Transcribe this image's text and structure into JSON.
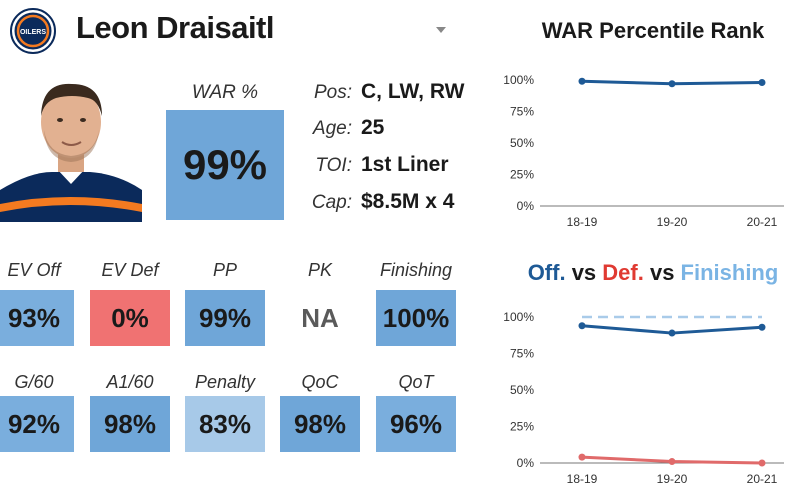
{
  "header": {
    "player_name": "Leon Draisaitl",
    "logo_text": "OILERS"
  },
  "war": {
    "label": "WAR %",
    "value": "99%"
  },
  "info": [
    {
      "key": "Pos:",
      "value": "C, LW, RW"
    },
    {
      "key": "Age:",
      "value": "25"
    },
    {
      "key": "TOI:",
      "value": "1st Liner"
    },
    {
      "key": "Cap:",
      "value": "$8.5M x 4"
    }
  ],
  "stats": [
    {
      "label": "EV Off",
      "value": "93%",
      "color": "#7aaedd"
    },
    {
      "label": "EV Def",
      "value": "0%",
      "color": "#f07272"
    },
    {
      "label": "PP",
      "value": "99%",
      "color": "#6fa6d8"
    },
    {
      "label": "PK",
      "value": "NA",
      "color": "#ffffff"
    },
    {
      "label": "Finishing",
      "value": "100%",
      "color": "#6fa6d8"
    },
    {
      "label": "G/60",
      "value": "92%",
      "color": "#7aaedd"
    },
    {
      "label": "A1/60",
      "value": "98%",
      "color": "#6fa6d8"
    },
    {
      "label": "Penalty",
      "value": "83%",
      "color": "#a7c9e8"
    },
    {
      "label": "QoC",
      "value": "98%",
      "color": "#6fa6d8"
    },
    {
      "label": "QoT",
      "value": "96%",
      "color": "#7aaedd"
    }
  ],
  "chart_titles": {
    "war": "WAR Percentile Rank",
    "off": "Off.",
    "def": "Def.",
    "fin": "Finishing",
    "vs1": " vs ",
    "vs2": " vs "
  },
  "chart_data": [
    {
      "type": "line",
      "title": "WAR Percentile Rank",
      "categories": [
        "18-19",
        "19-20",
        "20-21"
      ],
      "yticks": [
        "0%",
        "25%",
        "50%",
        "75%",
        "100%"
      ],
      "ylim": [
        0,
        100
      ],
      "series": [
        {
          "values": [
            99,
            97,
            98
          ],
          "color": "#1e5a96",
          "dashed": false
        }
      ]
    },
    {
      "type": "line",
      "title": "Off. vs Def. vs Finishing",
      "categories": [
        "18-19",
        "19-20",
        "20-21"
      ],
      "yticks": [
        "0%",
        "25%",
        "50%",
        "75%",
        "100%"
      ],
      "ylim": [
        0,
        100
      ],
      "series": [
        {
          "values": [
            100,
            100,
            100
          ],
          "color": "#a9cbe9",
          "dashed": true,
          "markers": false
        },
        {
          "values": [
            94,
            89,
            93
          ],
          "color": "#1e5a96",
          "dashed": false,
          "markers": true
        },
        {
          "values": [
            4,
            1,
            0
          ],
          "color": "#e06a6a",
          "dashed": false,
          "markers": true
        }
      ]
    }
  ]
}
